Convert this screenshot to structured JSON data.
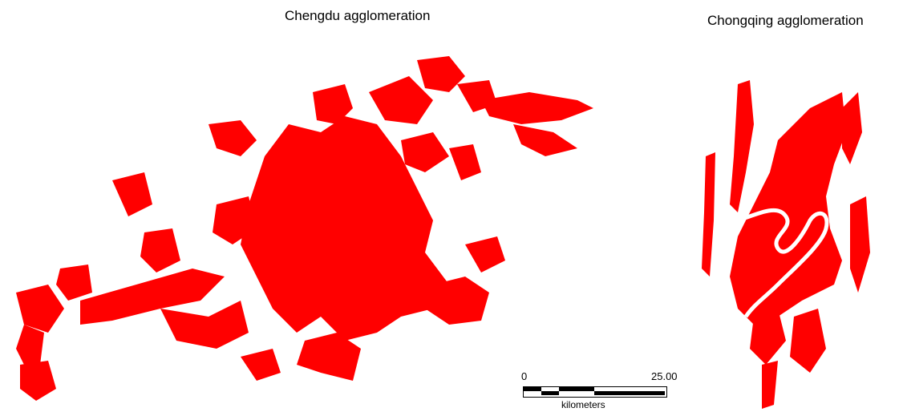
{
  "maps": {
    "chengdu": {
      "title": "Chengdu agglomeration",
      "fill_color": "#ff0000"
    },
    "chongqing": {
      "title": "Chongqing agglomeration",
      "fill_color": "#ff0000"
    }
  },
  "scale_bar": {
    "min_label": "0",
    "max_label": "25.00",
    "unit": "kilometers"
  }
}
